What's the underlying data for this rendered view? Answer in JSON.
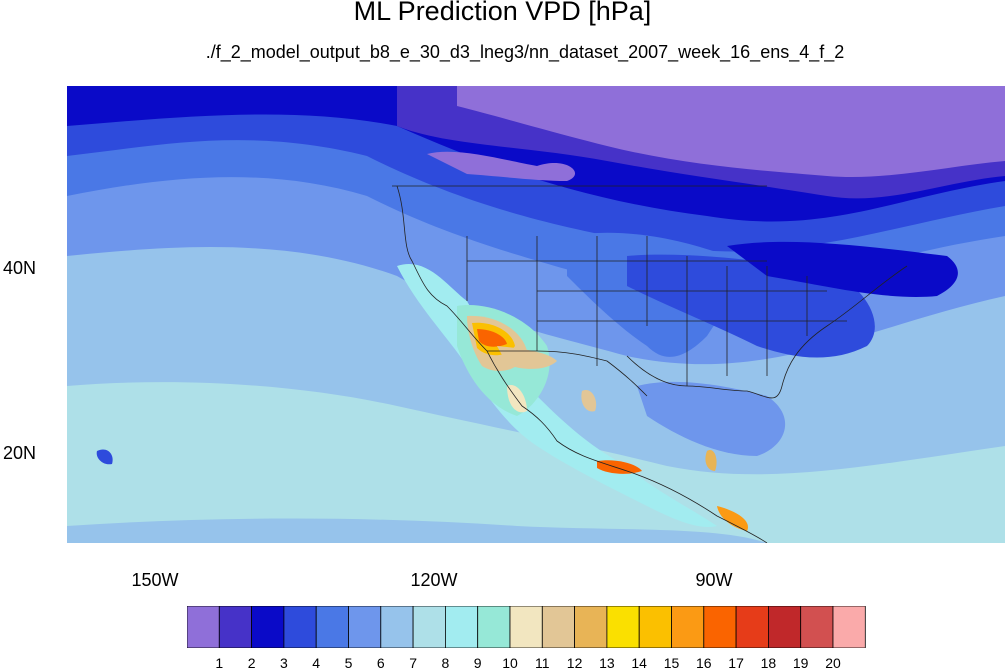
{
  "title": "ML Prediction VPD [hPa]",
  "subtitle": "./f_2_model_output_b8_e_30_d3_lneg3/nn_dataset_2007_week_16_ens_4_f_2",
  "axes": {
    "lat_labels": [
      "40N",
      "20N"
    ],
    "lon_labels": [
      "150W",
      "120W",
      "90W"
    ]
  },
  "colorbar": {
    "colors": [
      "#8f6fd9",
      "#4632c8",
      "#0a0ac8",
      "#2e4bdc",
      "#4a78e6",
      "#6e96ec",
      "#96c3eb",
      "#aee0e8",
      "#a2ecf0",
      "#96e8d7",
      "#f2e6c0",
      "#e2c696",
      "#e8b456",
      "#fae000",
      "#fbc000",
      "#fb9a14",
      "#fa6400",
      "#e63c19",
      "#c0282a",
      "#d25050",
      "#faaaaa"
    ],
    "labels": [
      "1",
      "2",
      "3",
      "4",
      "5",
      "6",
      "7",
      "8",
      "9",
      "10",
      "11",
      "12",
      "13",
      "14",
      "15",
      "16",
      "17",
      "18",
      "19",
      "20"
    ]
  }
}
